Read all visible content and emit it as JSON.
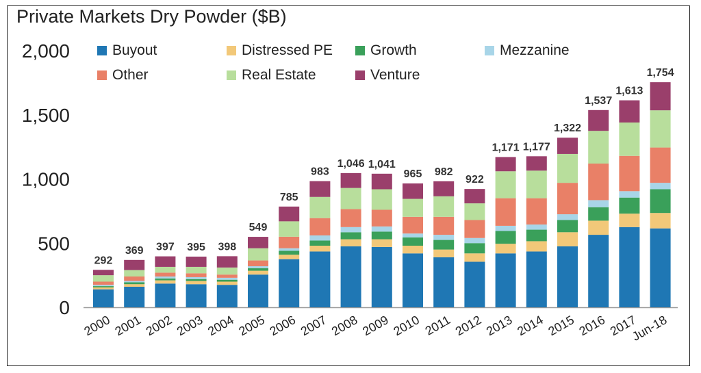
{
  "chart_data": {
    "type": "bar",
    "stacked": true,
    "title": "Private Markets Dry Powder ($B)",
    "xlabel": "",
    "ylabel": "",
    "ylim": [
      0,
      2000
    ],
    "yticks": [
      0,
      500,
      1000,
      1500,
      2000
    ],
    "ytick_labels": [
      "0",
      "500",
      "1,000",
      "1,500",
      "2,000"
    ],
    "grid": false,
    "legend_position": "top-left",
    "categories": [
      "2000",
      "2001",
      "2002",
      "2003",
      "2004",
      "2005",
      "2006",
      "2007",
      "2008",
      "2009",
      "2010",
      "2011",
      "2012",
      "2013",
      "2014",
      "2015",
      "2016",
      "2017",
      "Jun-18"
    ],
    "totals": [
      292,
      369,
      397,
      395,
      398,
      549,
      785,
      983,
      1046,
      1041,
      965,
      982,
      922,
      1171,
      1177,
      1322,
      1537,
      1613,
      1754
    ],
    "total_labels": [
      "292",
      "369",
      "397",
      "395",
      "398",
      "549",
      "785",
      "983",
      "1,046",
      "1,041",
      "965",
      "982",
      "922",
      "1,171",
      "1,177",
      "1,322",
      "1,537",
      "1,613",
      "1,754"
    ],
    "series": [
      {
        "name": "Buyout",
        "color": "#1f77b4",
        "values": [
          140,
          160,
          185,
          180,
          175,
          255,
          375,
          435,
          475,
          470,
          420,
          390,
          355,
          420,
          435,
          475,
          565,
          625,
          615
        ]
      },
      {
        "name": "Distressed PE",
        "color": "#f2c879",
        "values": [
          15,
          20,
          25,
          25,
          25,
          30,
          35,
          45,
          55,
          60,
          60,
          60,
          65,
          75,
          80,
          110,
          110,
          105,
          120
        ]
      },
      {
        "name": "Growth",
        "color": "#3aa05a",
        "values": [
          10,
          15,
          15,
          15,
          15,
          20,
          30,
          40,
          55,
          60,
          65,
          75,
          80,
          100,
          90,
          95,
          105,
          125,
          185
        ]
      },
      {
        "name": "Mezzanine",
        "color": "#a8d5e8",
        "values": [
          10,
          10,
          15,
          15,
          15,
          15,
          20,
          40,
          40,
          40,
          30,
          40,
          40,
          40,
          40,
          45,
          55,
          50,
          50
        ]
      },
      {
        "name": "Other",
        "color": "#e98067",
        "values": [
          25,
          35,
          30,
          30,
          25,
          45,
          90,
          135,
          140,
          130,
          130,
          140,
          140,
          215,
          205,
          245,
          285,
          275,
          275
        ]
      },
      {
        "name": "Real Estate",
        "color": "#b8de9c",
        "values": [
          50,
          50,
          45,
          50,
          55,
          95,
          120,
          165,
          165,
          160,
          140,
          160,
          130,
          210,
          215,
          225,
          255,
          260,
          290
        ]
      },
      {
        "name": "Venture",
        "color": "#9a3f6b",
        "values": [
          42,
          79,
          82,
          80,
          88,
          89,
          115,
          123,
          116,
          121,
          120,
          117,
          112,
          111,
          112,
          127,
          162,
          173,
          219
        ]
      }
    ]
  }
}
